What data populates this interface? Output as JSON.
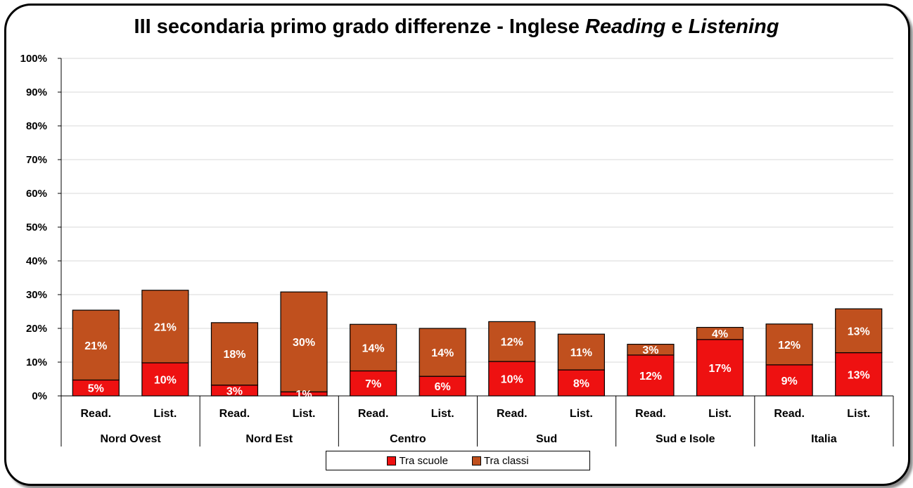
{
  "chart_data": {
    "type": "bar",
    "stacked": true,
    "title_parts": [
      {
        "text": "III secondaria primo grado differenze - Inglese ",
        "italic": false
      },
      {
        "text": "Reading",
        "italic": true
      },
      {
        "text": " e ",
        "italic": false
      },
      {
        "text": "Listening",
        "italic": true
      }
    ],
    "groups": [
      "Nord Ovest",
      "Nord Est",
      "Centro",
      "Sud",
      "Sud e Isole",
      "Italia"
    ],
    "sub_categories": [
      "Read.",
      "List."
    ],
    "categories": [
      "Nord Ovest Read.",
      "Nord Ovest List.",
      "Nord Est Read.",
      "Nord Est List.",
      "Centro Read.",
      "Centro List.",
      "Sud Read.",
      "Sud List.",
      "Sud e Isole Read.",
      "Sud e Isole List.",
      "Italia Read.",
      "Italia List."
    ],
    "series": [
      {
        "name": "Tra scuole",
        "color": "#ee1111",
        "values": [
          4.7,
          9.8,
          3.2,
          1.2,
          7.4,
          5.8,
          10.2,
          7.7,
          12.1,
          16.7,
          9.2,
          12.8
        ],
        "labels": [
          "5%",
          "10%",
          "3%",
          "1%",
          "7%",
          "6%",
          "10%",
          "8%",
          "12%",
          "17%",
          "9%",
          "13%"
        ]
      },
      {
        "name": "Tra classi",
        "color": "#c0501e",
        "values": [
          20.7,
          21.5,
          18.5,
          29.6,
          13.8,
          14.2,
          11.8,
          10.6,
          3.2,
          3.6,
          12.1,
          13.0
        ],
        "labels": [
          "21%",
          "21%",
          "18%",
          "30%",
          "14%",
          "14%",
          "12%",
          "11%",
          "3%",
          "4%",
          "12%",
          "13%"
        ]
      }
    ],
    "ylim": [
      0,
      100
    ],
    "y_ticks": [
      "0%",
      "10%",
      "20%",
      "30%",
      "40%",
      "50%",
      "60%",
      "70%",
      "80%",
      "90%",
      "100%"
    ],
    "grid": true,
    "legend_position": "bottom"
  }
}
